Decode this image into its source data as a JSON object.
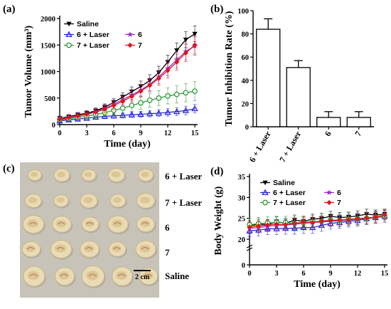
{
  "panels": {
    "a": "(a)",
    "b": "(b)",
    "c": "(c)",
    "d": "(d)"
  },
  "chart_data": [
    {
      "id": "a",
      "type": "line",
      "xlabel": "Time (day)",
      "ylabel": "Tumor Volume (mm³)",
      "xlim": [
        0,
        15
      ],
      "ylim": [
        0,
        2000
      ],
      "xticks": [
        0,
        3,
        6,
        9,
        12,
        15
      ],
      "yticks": [
        0,
        500,
        1000,
        1500,
        2000
      ],
      "legend": "top-left",
      "x": [
        0,
        1,
        2,
        3,
        4,
        5,
        6,
        7,
        8,
        9,
        10,
        11,
        12,
        13,
        14,
        15
      ],
      "series": [
        {
          "name": "Saline",
          "color": "#000000",
          "marker": "triangle-down",
          "values": [
            120,
            150,
            185,
            215,
            260,
            330,
            420,
            520,
            620,
            720,
            830,
            980,
            1180,
            1400,
            1600,
            1710
          ],
          "errors": [
            40,
            40,
            45,
            50,
            55,
            60,
            70,
            80,
            90,
            100,
            110,
            120,
            130,
            140,
            150,
            150
          ]
        },
        {
          "name": "6 + Laser",
          "color": "#2b2bd6",
          "marker": "triangle-up",
          "values": [
            70,
            90,
            105,
            120,
            140,
            155,
            165,
            175,
            185,
            195,
            205,
            215,
            230,
            245,
            265,
            300
          ],
          "errors": [
            30,
            30,
            35,
            40,
            40,
            45,
            45,
            50,
            50,
            55,
            60,
            65,
            70,
            75,
            80,
            80
          ]
        },
        {
          "name": "6",
          "color": "#9b30c9",
          "marker": "star",
          "values": [
            110,
            140,
            170,
            200,
            245,
            305,
            385,
            470,
            560,
            650,
            760,
            900,
            1060,
            1220,
            1380,
            1480
          ],
          "errors": [
            40,
            45,
            50,
            55,
            60,
            70,
            80,
            90,
            100,
            110,
            120,
            130,
            140,
            150,
            160,
            170
          ]
        },
        {
          "name": "7 + Laser",
          "color": "#2e9b3a",
          "marker": "circle-open",
          "values": [
            90,
            110,
            135,
            160,
            190,
            225,
            270,
            310,
            360,
            410,
            460,
            500,
            540,
            570,
            600,
            630
          ],
          "errors": [
            40,
            45,
            50,
            60,
            70,
            80,
            90,
            100,
            110,
            120,
            130,
            140,
            150,
            160,
            170,
            180
          ]
        },
        {
          "name": "7",
          "color": "#e0141a",
          "marker": "diamond",
          "values": [
            100,
            130,
            160,
            195,
            235,
            290,
            360,
            440,
            530,
            630,
            740,
            870,
            1020,
            1180,
            1350,
            1500
          ],
          "errors": [
            40,
            45,
            50,
            55,
            60,
            70,
            80,
            90,
            100,
            110,
            120,
            130,
            140,
            150,
            160,
            170
          ]
        }
      ]
    },
    {
      "id": "b",
      "type": "bar",
      "ylabel": "Tumor Inhibition Rate (%)",
      "ylim": [
        0,
        100
      ],
      "yticks": [
        0,
        20,
        40,
        60,
        80,
        100
      ],
      "categories": [
        "6 + Laser",
        "7 + Laser",
        "6",
        "7"
      ],
      "values": [
        84,
        51,
        8,
        8
      ],
      "errors": [
        9,
        6,
        5,
        5
      ]
    },
    {
      "id": "d",
      "type": "line",
      "xlabel": "Time (day)",
      "ylabel": "Body Weight (g)",
      "xlim": [
        0,
        15
      ],
      "ylim": [
        0,
        35
      ],
      "xticks": [
        0,
        3,
        6,
        9,
        12,
        15
      ],
      "yticks": [
        0,
        20,
        25,
        30,
        35
      ],
      "legend": "top-left",
      "x": [
        0,
        1,
        2,
        3,
        4,
        5,
        6,
        7,
        8,
        9,
        10,
        11,
        12,
        13,
        14,
        15
      ],
      "series": [
        {
          "name": "Saline",
          "color": "#000000",
          "marker": "triangle-down",
          "values": [
            23.2,
            23.6,
            23.5,
            24.2,
            23.8,
            24.6,
            24.3,
            24.8,
            25.0,
            25.5,
            25.2,
            25.3,
            25.6,
            26.0,
            25.8,
            26.0
          ],
          "errors": [
            1.2,
            1.2,
            1.2,
            1.2,
            1.2,
            1.2,
            1.2,
            1.2,
            1.2,
            1.2,
            1.2,
            1.2,
            1.2,
            1.2,
            1.2,
            1.2
          ]
        },
        {
          "name": "6 + Laser",
          "color": "#2b2bd6",
          "marker": "triangle-up",
          "values": [
            22.0,
            22.2,
            22.5,
            22.5,
            22.6,
            22.6,
            22.8,
            22.8,
            23.3,
            23.8,
            24.0,
            24.3,
            24.5,
            24.9,
            25.2,
            25.5
          ],
          "errors": [
            1.4,
            1.4,
            1.4,
            1.4,
            1.4,
            1.4,
            1.4,
            1.4,
            1.4,
            1.4,
            1.4,
            1.4,
            1.4,
            1.4,
            1.4,
            1.4
          ]
        },
        {
          "name": "6",
          "color": "#9b30c9",
          "marker": "star",
          "values": [
            22.6,
            22.8,
            23.1,
            23.3,
            23.4,
            23.6,
            23.8,
            24.0,
            24.1,
            24.3,
            24.4,
            24.6,
            24.8,
            25.0,
            25.2,
            25.4
          ],
          "errors": [
            1.3,
            1.3,
            1.3,
            1.3,
            1.3,
            1.3,
            1.3,
            1.3,
            1.3,
            1.3,
            1.3,
            1.3,
            1.3,
            1.3,
            1.3,
            1.3
          ]
        },
        {
          "name": "7 + Laser",
          "color": "#2e9b3a",
          "marker": "circle-open",
          "values": [
            23.5,
            23.7,
            23.9,
            24.0,
            24.0,
            23.8,
            24.0,
            24.2,
            24.3,
            24.6,
            24.5,
            24.8,
            24.9,
            25.0,
            25.3,
            25.6
          ],
          "errors": [
            1.5,
            1.5,
            1.5,
            1.5,
            1.5,
            1.5,
            1.5,
            1.5,
            1.5,
            1.5,
            1.5,
            1.5,
            1.5,
            1.5,
            1.5,
            1.5
          ]
        },
        {
          "name": "7",
          "color": "#e0141a",
          "marker": "diamond",
          "values": [
            22.9,
            23.2,
            23.4,
            23.6,
            23.5,
            23.8,
            24.1,
            24.0,
            24.3,
            24.5,
            24.6,
            24.7,
            24.9,
            25.1,
            25.3,
            25.8
          ],
          "errors": [
            1.2,
            1.2,
            1.2,
            1.2,
            1.2,
            1.2,
            1.2,
            1.2,
            1.2,
            1.2,
            1.2,
            1.2,
            1.2,
            1.2,
            1.2,
            1.2
          ]
        }
      ]
    }
  ],
  "photo": {
    "row_labels": [
      "6 + Laser",
      "7 + Laser",
      "6",
      "7",
      "Saline"
    ],
    "scale_bar": "2 cm",
    "background_color": "#c8c3b8"
  }
}
